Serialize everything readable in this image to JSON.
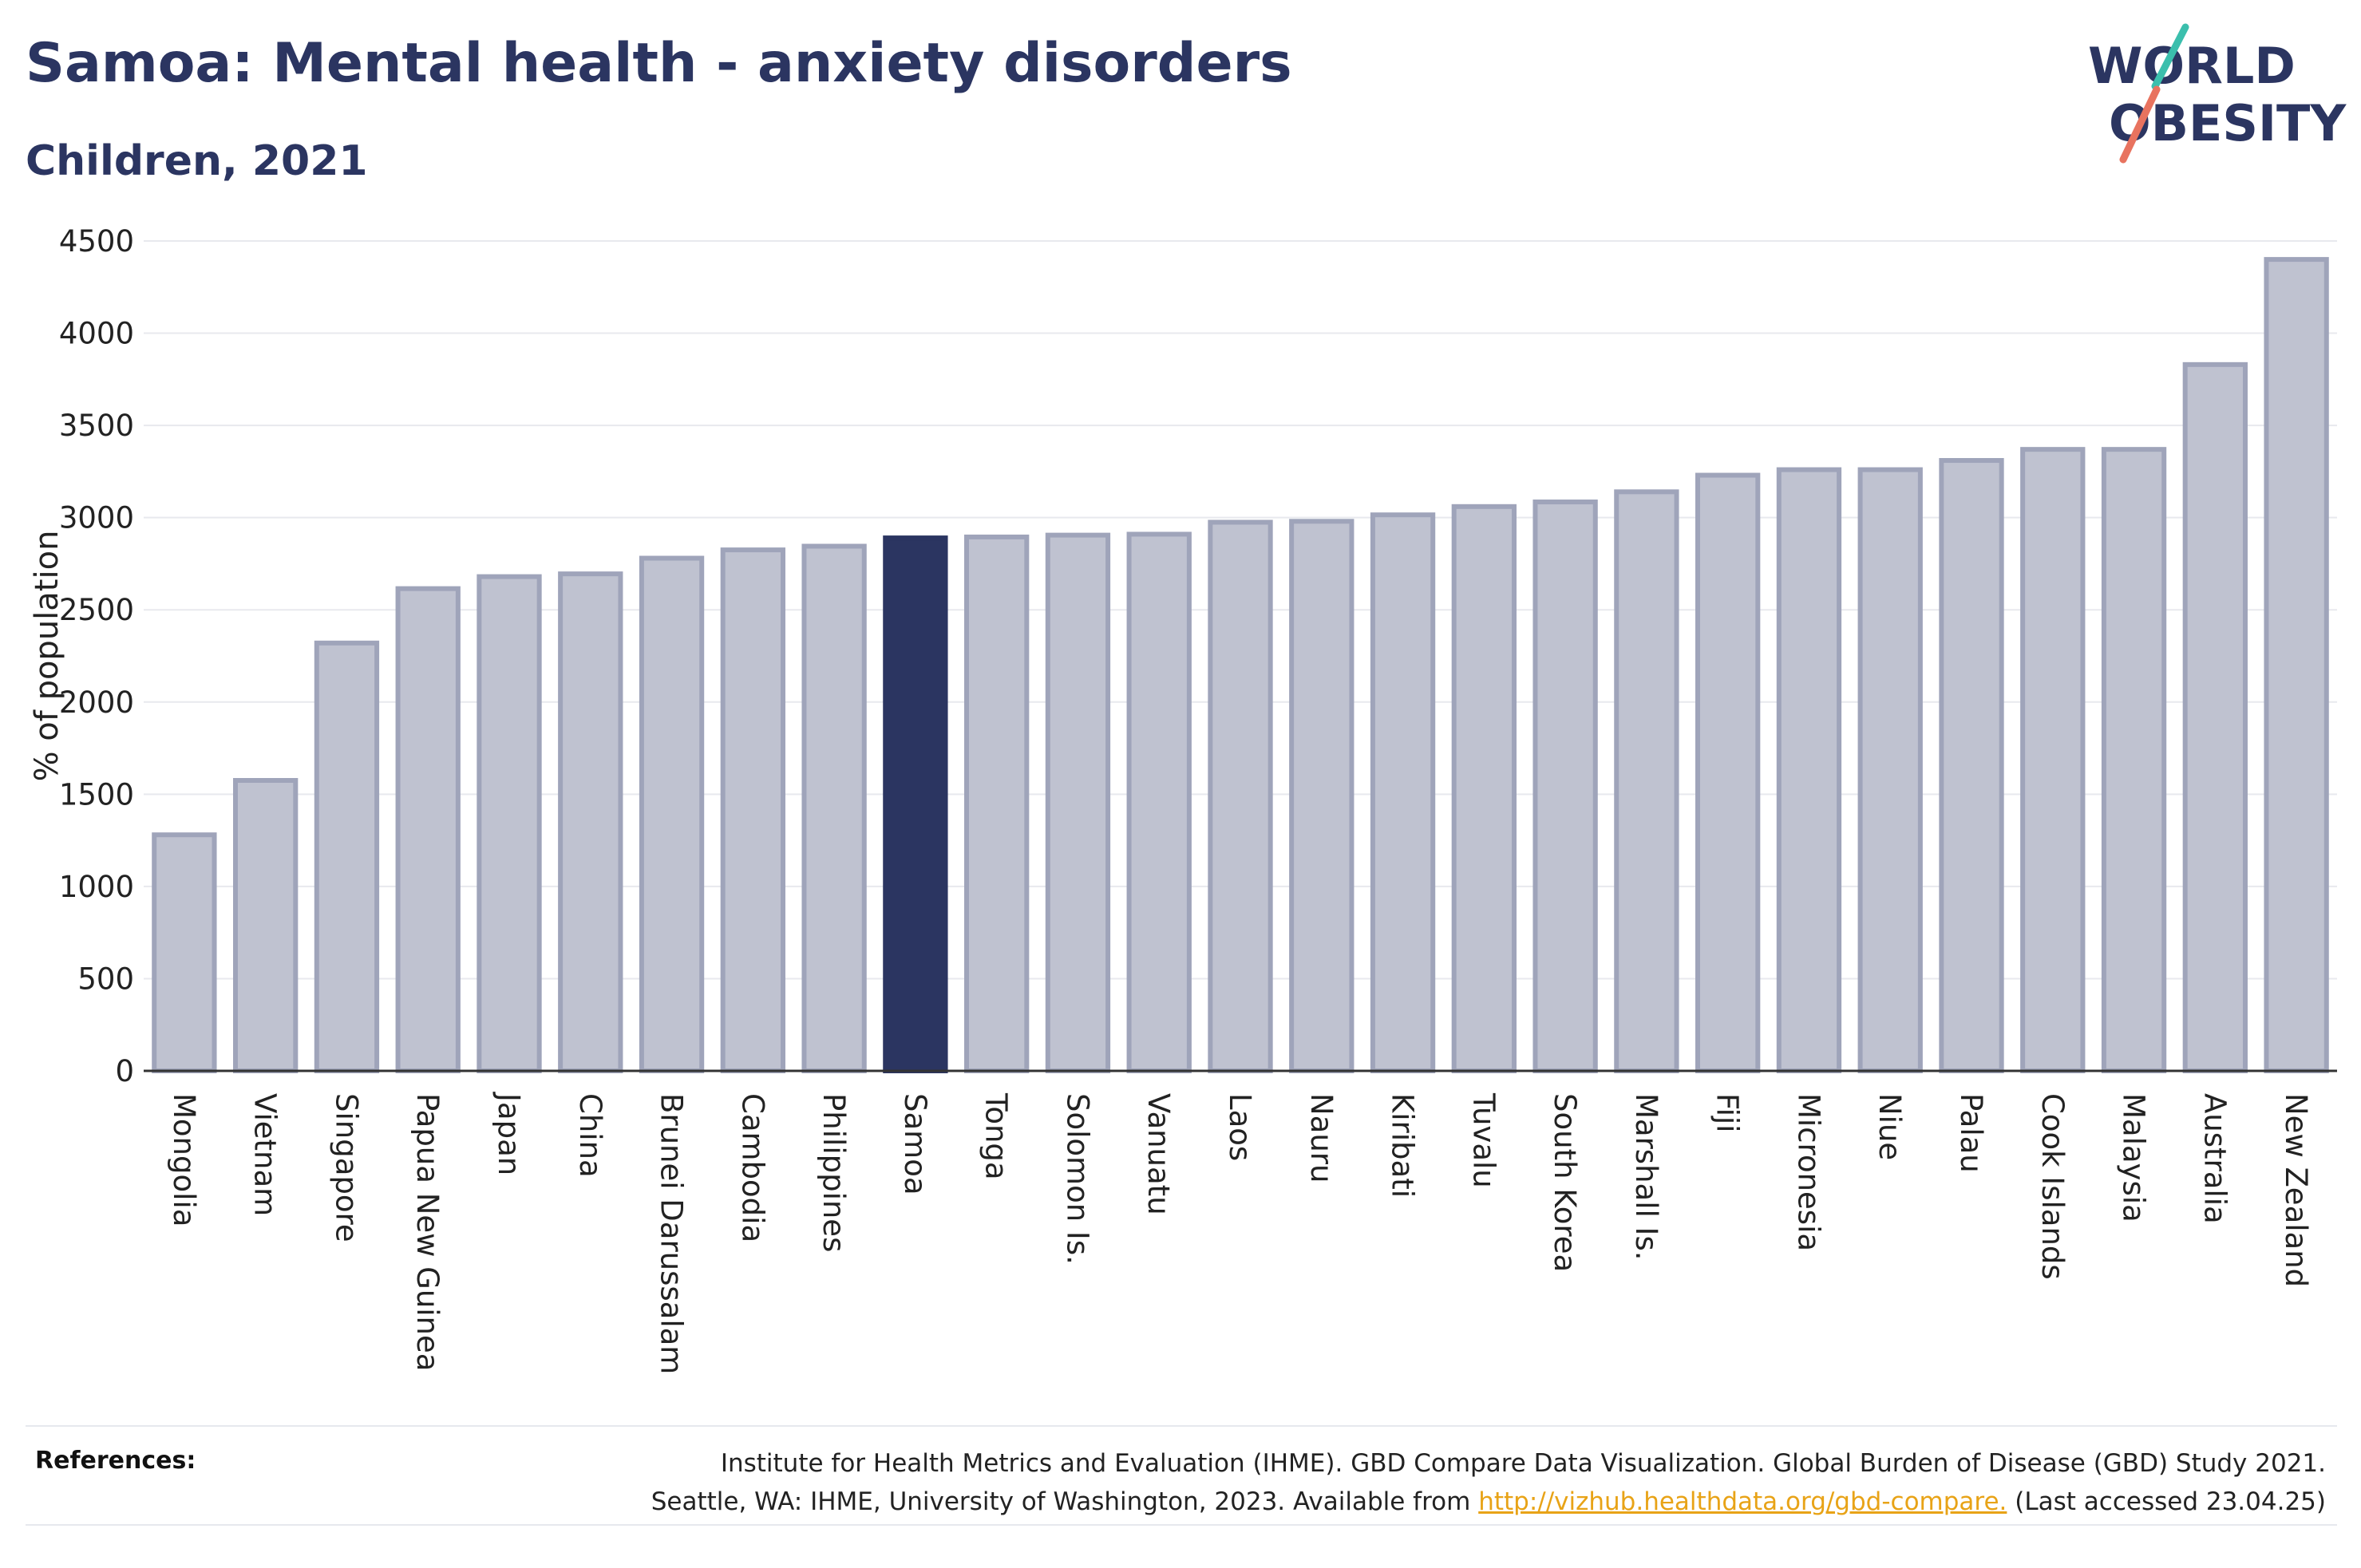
{
  "header": {
    "title": "Samoa: Mental health - anxiety disorders",
    "subtitle": "Children, 2021"
  },
  "logo": {
    "line1": "WORLD",
    "line2": "OBESITY"
  },
  "chart_data": {
    "type": "bar",
    "ylabel": "% of population",
    "ylim": [
      0,
      4500
    ],
    "yticks": [
      0,
      500,
      1000,
      1500,
      2000,
      2500,
      3000,
      3500,
      4000,
      4500
    ],
    "grid": true,
    "highlight": "Samoa",
    "categories": [
      "Mongolia",
      "Vietnam",
      "Singapore",
      "Papua New Guinea",
      "Japan",
      "China",
      "Brunei Darussalam",
      "Cambodia",
      "Philippines",
      "Samoa",
      "Tonga",
      "Solomon Is.",
      "Vanuatu",
      "Laos",
      "Nauru",
      "Kiribati",
      "Tuvalu",
      "South Korea",
      "Marshall Is.",
      "Fiji",
      "Micronesia",
      "Niue",
      "Palau",
      "Cook Islands",
      "Malaysia",
      "Australia",
      "New Zealand"
    ],
    "values": [
      1280,
      1575,
      2320,
      2615,
      2680,
      2695,
      2780,
      2825,
      2845,
      2890,
      2895,
      2905,
      2910,
      2975,
      2980,
      3015,
      3060,
      3085,
      3140,
      3230,
      3260,
      3260,
      3310,
      3370,
      3370,
      3830,
      4400
    ]
  },
  "colors": {
    "bar": "#bfc2d0",
    "bar_stroke": "#9fa4ba",
    "highlight": "#2b3561",
    "text": "#2b3561",
    "logo_teal": "#3bbfad",
    "logo_coral": "#e8735f"
  },
  "references": {
    "label": "References:",
    "line1": "Institute for Health Metrics and Evaluation (IHME). GBD Compare Data Visualization. Global Burden of Disease (GBD) Study 2021.",
    "line2_pre": "Seattle, WA: IHME, University of Washington, 2023. Available from",
    "link": "http://vizhub.healthdata.org/gbd-compare.",
    "line2_post": "(Last accessed 23.04.25)"
  }
}
